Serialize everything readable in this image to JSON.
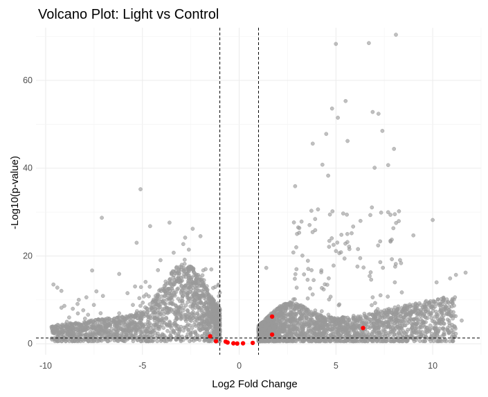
{
  "chart_data": {
    "type": "scatter",
    "title": "Volcano Plot: Light vs Control",
    "xlabel": "Log2 Fold Change",
    "ylabel": "-Log10(p-value)",
    "xlim": [
      -10.5,
      12.5
    ],
    "ylim": [
      -2.5,
      72
    ],
    "x_ticks": [
      -10,
      -5,
      0,
      5,
      10
    ],
    "y_ticks": [
      0,
      20,
      40,
      60
    ],
    "x_tick_labels": [
      "-10",
      "-5",
      "0",
      "5",
      "10"
    ],
    "y_tick_labels": [
      "0",
      "20",
      "40",
      "60"
    ],
    "grid": true,
    "legend": "none",
    "thresholds": {
      "vertical_x": [
        -1,
        1
      ],
      "horizontal_y": 1.3
    },
    "colors": {
      "non_significant": "#999999",
      "highlighted": "#ff0000",
      "threshold_line": "#000000"
    },
    "series": [
      {
        "role": "non-significant genes (dense clouds)",
        "color": "#999999",
        "clouds": [
          {
            "x_range": [
              -9.8,
              -1.0
            ],
            "y_range": [
              0.5,
              28.5
            ],
            "peak_x": -2.8,
            "density": "very high"
          },
          {
            "x_range": [
              1.0,
              11.7
            ],
            "y_range": [
              0.5,
              70.5
            ],
            "peak_x": 2.5,
            "density": "very high"
          }
        ],
        "notable_points": [
          [
            -5.1,
            35.2
          ],
          [
            -7.1,
            28.7
          ],
          [
            -4.6,
            26.8
          ],
          [
            -3.6,
            27.6
          ],
          [
            -2.4,
            26.2
          ],
          [
            -2.0,
            24.5
          ],
          [
            -5.3,
            23.0
          ],
          [
            -9.6,
            13.5
          ],
          [
            -9.4,
            12.8
          ],
          [
            -7.6,
            16.7
          ],
          [
            -6.2,
            15.9
          ],
          [
            5.0,
            68.3
          ],
          [
            6.7,
            68.5
          ],
          [
            8.1,
            70.4
          ],
          [
            5.5,
            55.3
          ],
          [
            4.8,
            53.6
          ],
          [
            5.1,
            51.5
          ],
          [
            6.9,
            52.8
          ],
          [
            7.2,
            52.4
          ],
          [
            3.8,
            45.6
          ],
          [
            4.5,
            47.8
          ],
          [
            5.6,
            46.2
          ],
          [
            7.4,
            48.5
          ],
          [
            8.0,
            44.4
          ],
          [
            4.3,
            40.8
          ],
          [
            7.0,
            40.1
          ],
          [
            4.6,
            38.3
          ],
          [
            7.7,
            40.7
          ],
          [
            10.0,
            28.2
          ],
          [
            9.0,
            24.7
          ],
          [
            11.2,
            15.7
          ],
          [
            11.7,
            16.2
          ],
          [
            10.2,
            14.0
          ],
          [
            10.9,
            14.9
          ],
          [
            11.5,
            5.3
          ],
          [
            10.8,
            6.7
          ],
          [
            10.1,
            2.0
          ],
          [
            3.1,
            25.3
          ],
          [
            2.8,
            20.8
          ],
          [
            1.4,
            17.3
          ]
        ]
      },
      {
        "role": "highlighted genes",
        "color": "#ff0000",
        "points": [
          [
            -1.5,
            1.7
          ],
          [
            -1.2,
            0.6
          ],
          [
            -0.7,
            0.5
          ],
          [
            -0.6,
            0.3
          ],
          [
            -0.3,
            0.1
          ],
          [
            -0.1,
            0.05
          ],
          [
            0.2,
            0.1
          ],
          [
            0.7,
            0.2
          ],
          [
            1.7,
            6.2
          ],
          [
            1.7,
            2.1
          ],
          [
            6.4,
            3.6
          ]
        ]
      }
    ]
  }
}
